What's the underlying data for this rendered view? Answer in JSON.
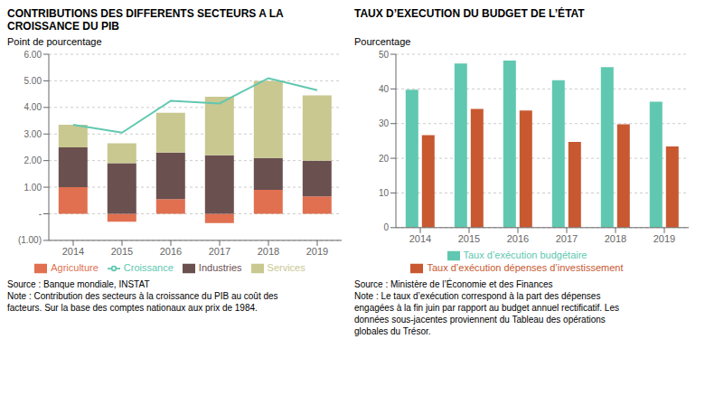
{
  "chart_data": [
    {
      "type": "bar",
      "stacked": true,
      "title": "CONTRIBUTIONS DES DIFFERENTS SECTEURS A LA\nCROISSANCE DU PIB",
      "y_label": "Point de pourcentage",
      "categories": [
        "2014",
        "2015",
        "2016",
        "2017",
        "2018",
        "2019"
      ],
      "series": [
        {
          "name": "Agriculture",
          "color": "#e07050",
          "values": [
            1.0,
            -0.3,
            0.55,
            -0.35,
            0.9,
            0.65
          ]
        },
        {
          "name": "Industries",
          "color": "#6b5050",
          "values": [
            1.5,
            1.9,
            1.75,
            2.2,
            1.2,
            1.35
          ]
        },
        {
          "name": "Services",
          "color": "#c8c890",
          "values": [
            0.85,
            0.75,
            1.5,
            2.2,
            2.9,
            2.45
          ]
        },
        {
          "name": "Croissance",
          "type": "line",
          "color": "#60c8b0",
          "values": [
            3.35,
            3.05,
            4.25,
            4.15,
            5.1,
            4.65
          ]
        }
      ],
      "ylim": [
        -1.0,
        6.0
      ],
      "yticks": [
        {
          "value": -1.0,
          "label": "(1.00)"
        },
        {
          "value": 0.0,
          "label": "-"
        },
        {
          "value": 1.0,
          "label": "1.00"
        },
        {
          "value": 2.0,
          "label": "2.00"
        },
        {
          "value": 3.0,
          "label": "3.00"
        },
        {
          "value": 4.0,
          "label": "4.00"
        },
        {
          "value": 5.0,
          "label": "5.00"
        },
        {
          "value": 6.0,
          "label": "6.00"
        }
      ],
      "grid": true,
      "legend": "bottom",
      "annotations": [
        "Source : Banque mondiale, INSTAT",
        "Note : Contribution des secteurs à la croissance du PIB au coût des",
        "facteurs. Sur la base des comptes nationaux aux prix de 1984."
      ]
    },
    {
      "type": "bar",
      "stacked": false,
      "title": "TAUX D’EXECUTION DU BUDGET DE L’ÉTAT",
      "y_label": "Pourcentage",
      "categories": [
        "2014",
        "2015",
        "2016",
        "2017",
        "2018",
        "2019"
      ],
      "series": [
        {
          "name": "Taux d’exécution budgétaire",
          "color": "#60c8b0",
          "values": [
            39.8,
            47.3,
            48.2,
            42.5,
            46.3,
            36.3
          ]
        },
        {
          "name": "Taux d’exécution dépenses d’investissement",
          "color": "#c85830",
          "values": [
            26.7,
            34.2,
            33.8,
            24.7,
            29.8,
            23.4
          ]
        }
      ],
      "ylim": [
        0,
        50
      ],
      "yticks": [
        0,
        10,
        20,
        30,
        40,
        50
      ],
      "grid": true,
      "legend": "bottom",
      "annotations": [
        "Source : Ministère de l’Économie et des Finances",
        "Note : Le taux d’exécution correspond à la part des dépenses",
        "engagées à la fin juin par rapport au budget annuel rectificatif. Les",
        "données sous-jacentes proviennent du Tableau des opérations",
        "globales du Trésor."
      ]
    }
  ]
}
